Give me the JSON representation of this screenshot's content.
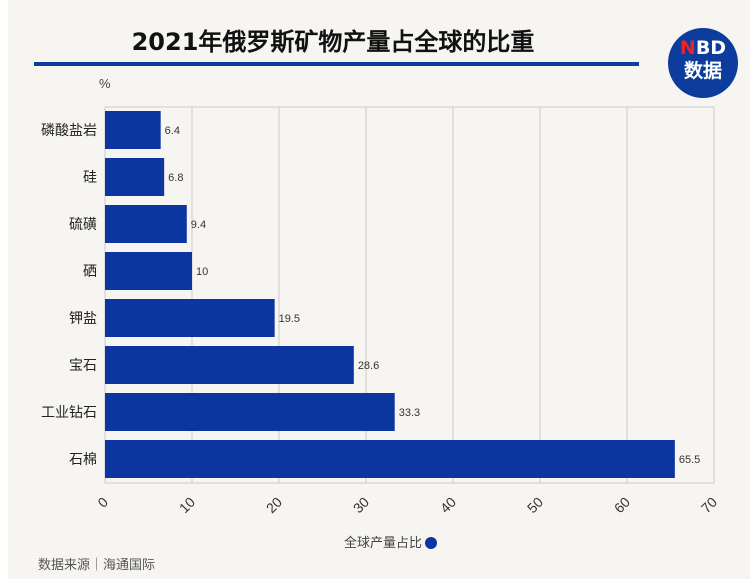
{
  "chart_data": {
    "type": "bar",
    "orientation": "horizontal",
    "title": "2021年俄罗斯矿物产量占全球的比重",
    "unit_label": "%",
    "categories": [
      "磷酸盐岩",
      "硅",
      "硫磺",
      "硒",
      "钾盐",
      "宝石",
      "工业钻石",
      "石棉"
    ],
    "series": [
      {
        "name": "全球产量占比",
        "values": [
          6.4,
          6.8,
          9.4,
          10,
          19.5,
          28.6,
          33.3,
          65.5
        ],
        "color": "#0d35a0"
      }
    ],
    "xlim": [
      0,
      70
    ],
    "xticks": [
      0,
      10,
      20,
      30,
      40,
      50,
      60,
      70
    ],
    "grid": true,
    "legend": "bottom"
  },
  "logo": {
    "line1_accent": "N",
    "line1_rest": "BD",
    "line2": "数据"
  },
  "source": "数据来源｜海通国际"
}
